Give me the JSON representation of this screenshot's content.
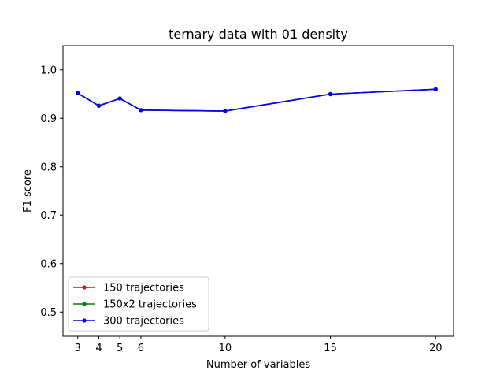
{
  "chart_data": {
    "type": "line",
    "title": "ternary data with 01 density",
    "xlabel": "Number of variables",
    "ylabel": "F1 score",
    "x": [
      3,
      4,
      5,
      6,
      10,
      15,
      20
    ],
    "xticks": [
      3,
      4,
      5,
      6,
      10,
      15,
      20
    ],
    "xlim": [
      2.3,
      20.85
    ],
    "ylim": [
      0.45,
      1.05
    ],
    "yticks": [
      0.5,
      0.6,
      0.7,
      0.8,
      0.9,
      1.0
    ],
    "ytick_labels": [
      "0.5",
      "0.6",
      "0.7",
      "0.8",
      "0.9",
      "1.0"
    ],
    "grid": false,
    "legend_position": "lower-left",
    "series": [
      {
        "name": "150 trajectories",
        "color": "#ff0000",
        "values": [
          0.952,
          0.926,
          0.941,
          0.917,
          0.915,
          0.95,
          0.96
        ]
      },
      {
        "name": "150x2 trajectories",
        "color": "#008000",
        "values": [
          0.952,
          0.926,
          0.941,
          0.917,
          0.915,
          0.95,
          0.96
        ]
      },
      {
        "name": "300 trajectories",
        "color": "#0000ff",
        "values": [
          0.952,
          0.926,
          0.941,
          0.917,
          0.915,
          0.95,
          0.96
        ]
      }
    ]
  }
}
